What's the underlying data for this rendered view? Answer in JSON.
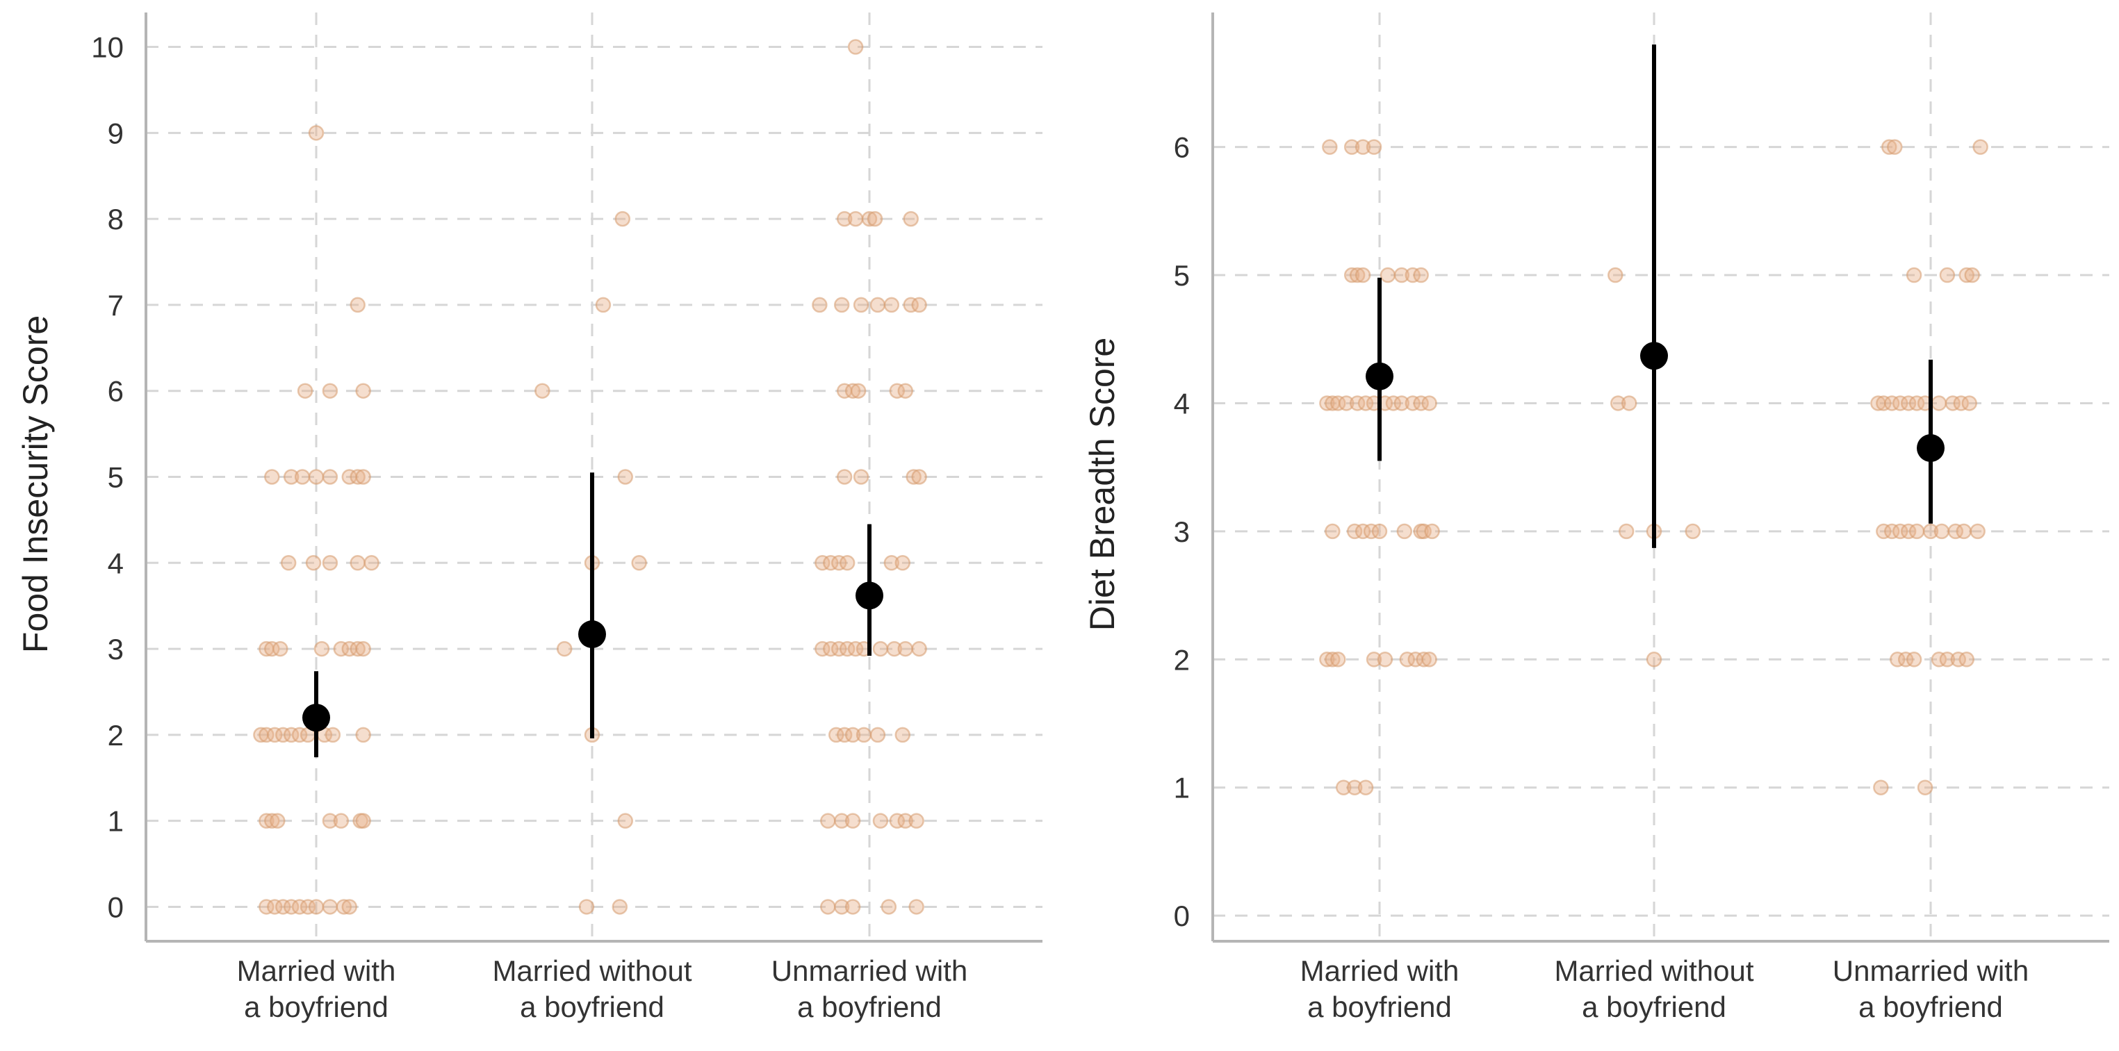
{
  "chart_data": [
    {
      "type": "scatter",
      "title": "",
      "xlabel": "",
      "ylabel": "Food Insecurity Score",
      "ylim": [
        -0.4,
        10.4
      ],
      "yticks": [
        0,
        1,
        2,
        3,
        4,
        5,
        6,
        7,
        8,
        9,
        10
      ],
      "categories": [
        [
          "Married with",
          "a boyfriend"
        ],
        [
          "Married without",
          "a boyfriend"
        ],
        [
          "Unmarried with",
          "a boyfriend"
        ]
      ],
      "means": [
        2.2,
        3.17,
        3.62
      ],
      "ci": [
        [
          1.74,
          2.74
        ],
        [
          1.96,
          5.05
        ],
        [
          2.92,
          4.45
        ]
      ],
      "points": [
        [
          [
            -0.18,
            0
          ],
          [
            -0.15,
            0
          ],
          [
            -0.12,
            0
          ],
          [
            -0.09,
            0
          ],
          [
            -0.06,
            0
          ],
          [
            -0.03,
            0
          ],
          [
            0.0,
            0
          ],
          [
            0.05,
            0
          ],
          [
            0.1,
            0
          ],
          [
            0.12,
            0
          ],
          [
            -0.18,
            1
          ],
          [
            -0.16,
            1
          ],
          [
            -0.14,
            1
          ],
          [
            0.05,
            1
          ],
          [
            0.09,
            1
          ],
          [
            0.16,
            1
          ],
          [
            0.17,
            1
          ],
          [
            -0.2,
            2
          ],
          [
            -0.18,
            2
          ],
          [
            -0.15,
            2
          ],
          [
            -0.12,
            2
          ],
          [
            -0.09,
            2
          ],
          [
            -0.06,
            2
          ],
          [
            -0.03,
            2
          ],
          [
            0.03,
            2
          ],
          [
            0.06,
            2
          ],
          [
            0.17,
            2
          ],
          [
            -0.18,
            3
          ],
          [
            -0.16,
            3
          ],
          [
            -0.13,
            3
          ],
          [
            0.02,
            3
          ],
          [
            0.09,
            3
          ],
          [
            0.12,
            3
          ],
          [
            0.15,
            3
          ],
          [
            0.17,
            3
          ],
          [
            -0.1,
            4
          ],
          [
            -0.01,
            4
          ],
          [
            0.05,
            4
          ],
          [
            0.15,
            4
          ],
          [
            0.2,
            4
          ],
          [
            -0.16,
            5
          ],
          [
            -0.09,
            5
          ],
          [
            -0.05,
            5
          ],
          [
            0.0,
            5
          ],
          [
            0.05,
            5
          ],
          [
            0.12,
            5
          ],
          [
            0.15,
            5
          ],
          [
            0.17,
            5
          ],
          [
            -0.04,
            6
          ],
          [
            0.05,
            6
          ],
          [
            0.17,
            6
          ],
          [
            0.15,
            7
          ],
          [
            0.0,
            9
          ]
        ],
        [
          [
            -0.02,
            0
          ],
          [
            0.1,
            0
          ],
          [
            0.12,
            1
          ],
          [
            0.0,
            2
          ],
          [
            -0.1,
            3
          ],
          [
            0.0,
            4
          ],
          [
            0.17,
            4
          ],
          [
            0.12,
            5
          ],
          [
            -0.18,
            6
          ],
          [
            0.04,
            7
          ],
          [
            0.11,
            8
          ]
        ],
        [
          [
            -0.15,
            0
          ],
          [
            -0.1,
            0
          ],
          [
            -0.06,
            0
          ],
          [
            0.07,
            0
          ],
          [
            0.17,
            0
          ],
          [
            -0.15,
            1
          ],
          [
            -0.1,
            1
          ],
          [
            -0.06,
            1
          ],
          [
            0.04,
            1
          ],
          [
            0.1,
            1
          ],
          [
            0.13,
            1
          ],
          [
            0.17,
            1
          ],
          [
            -0.12,
            2
          ],
          [
            -0.09,
            2
          ],
          [
            -0.06,
            2
          ],
          [
            -0.02,
            2
          ],
          [
            0.03,
            2
          ],
          [
            0.12,
            2
          ],
          [
            -0.17,
            3
          ],
          [
            -0.14,
            3
          ],
          [
            -0.11,
            3
          ],
          [
            -0.08,
            3
          ],
          [
            -0.05,
            3
          ],
          [
            -0.02,
            3
          ],
          [
            0.04,
            3
          ],
          [
            0.09,
            3
          ],
          [
            0.13,
            3
          ],
          [
            0.18,
            3
          ],
          [
            -0.17,
            4
          ],
          [
            -0.14,
            4
          ],
          [
            -0.11,
            4
          ],
          [
            -0.08,
            4
          ],
          [
            0.08,
            4
          ],
          [
            0.12,
            4
          ],
          [
            -0.09,
            5
          ],
          [
            -0.03,
            5
          ],
          [
            0.16,
            5
          ],
          [
            0.18,
            5
          ],
          [
            -0.09,
            6
          ],
          [
            -0.06,
            6
          ],
          [
            -0.04,
            6
          ],
          [
            0.1,
            6
          ],
          [
            0.13,
            6
          ],
          [
            -0.18,
            7
          ],
          [
            -0.1,
            7
          ],
          [
            -0.03,
            7
          ],
          [
            0.03,
            7
          ],
          [
            0.08,
            7
          ],
          [
            0.15,
            7
          ],
          [
            0.18,
            7
          ],
          [
            -0.09,
            8
          ],
          [
            -0.05,
            8
          ],
          [
            0.0,
            8
          ],
          [
            0.02,
            8
          ],
          [
            0.15,
            8
          ],
          [
            -0.05,
            10
          ]
        ]
      ]
    },
    {
      "type": "scatter",
      "title": "",
      "xlabel": "",
      "ylabel": "Diet Breadth Score",
      "ylim": [
        -0.2,
        7.05
      ],
      "yticks": [
        0,
        1,
        2,
        3,
        4,
        5,
        6
      ],
      "categories": [
        [
          "Married with",
          "a boyfriend"
        ],
        [
          "Married without",
          "a boyfriend"
        ],
        [
          "Unmarried with",
          "a boyfriend"
        ]
      ],
      "means": [
        4.21,
        4.37,
        3.65
      ],
      "ci": [
        [
          3.55,
          4.98
        ],
        [
          2.87,
          6.8
        ],
        [
          3.06,
          4.34
        ]
      ],
      "points": [
        [
          [
            -0.13,
            1
          ],
          [
            -0.09,
            1
          ],
          [
            -0.05,
            1
          ],
          [
            -0.19,
            2
          ],
          [
            -0.17,
            2
          ],
          [
            -0.15,
            2
          ],
          [
            -0.02,
            2
          ],
          [
            0.02,
            2
          ],
          [
            0.1,
            2
          ],
          [
            0.13,
            2
          ],
          [
            0.16,
            2
          ],
          [
            0.18,
            2
          ],
          [
            -0.17,
            3
          ],
          [
            -0.09,
            3
          ],
          [
            -0.06,
            3
          ],
          [
            -0.03,
            3
          ],
          [
            0.0,
            3
          ],
          [
            0.09,
            3
          ],
          [
            0.15,
            3
          ],
          [
            0.16,
            3
          ],
          [
            0.19,
            3
          ],
          [
            -0.19,
            4
          ],
          [
            -0.17,
            4
          ],
          [
            -0.15,
            4
          ],
          [
            -0.12,
            4
          ],
          [
            -0.08,
            4
          ],
          [
            -0.05,
            4
          ],
          [
            -0.02,
            4
          ],
          [
            0.02,
            4
          ],
          [
            0.05,
            4
          ],
          [
            0.08,
            4
          ],
          [
            0.12,
            4
          ],
          [
            0.15,
            4
          ],
          [
            0.18,
            4
          ],
          [
            -0.1,
            5
          ],
          [
            -0.08,
            5
          ],
          [
            -0.06,
            5
          ],
          [
            0.03,
            5
          ],
          [
            0.08,
            5
          ],
          [
            0.12,
            5
          ],
          [
            0.15,
            5
          ],
          [
            -0.18,
            6
          ],
          [
            -0.1,
            6
          ],
          [
            -0.06,
            6
          ],
          [
            -0.02,
            6
          ]
        ],
        [
          [
            0.0,
            2
          ],
          [
            -0.1,
            3
          ],
          [
            0.0,
            3
          ],
          [
            0.14,
            3
          ],
          [
            -0.13,
            4
          ],
          [
            -0.09,
            4
          ],
          [
            -0.14,
            5
          ]
        ],
        [
          [
            -0.18,
            1
          ],
          [
            -0.02,
            1
          ],
          [
            -0.12,
            2
          ],
          [
            -0.09,
            2
          ],
          [
            -0.06,
            2
          ],
          [
            0.03,
            2
          ],
          [
            0.06,
            2
          ],
          [
            0.1,
            2
          ],
          [
            0.13,
            2
          ],
          [
            -0.17,
            3
          ],
          [
            -0.14,
            3
          ],
          [
            -0.11,
            3
          ],
          [
            -0.08,
            3
          ],
          [
            -0.05,
            3
          ],
          [
            0.0,
            3
          ],
          [
            0.04,
            3
          ],
          [
            0.09,
            3
          ],
          [
            0.12,
            3
          ],
          [
            0.17,
            3
          ],
          [
            -0.19,
            4
          ],
          [
            -0.17,
            4
          ],
          [
            -0.14,
            4
          ],
          [
            -0.11,
            4
          ],
          [
            -0.08,
            4
          ],
          [
            -0.05,
            4
          ],
          [
            -0.02,
            4
          ],
          [
            0.03,
            4
          ],
          [
            0.08,
            4
          ],
          [
            0.11,
            4
          ],
          [
            0.14,
            4
          ],
          [
            -0.06,
            5
          ],
          [
            0.06,
            5
          ],
          [
            0.13,
            5
          ],
          [
            0.15,
            5
          ],
          [
            -0.15,
            6
          ],
          [
            -0.13,
            6
          ],
          [
            0.18,
            6
          ]
        ]
      ]
    }
  ]
}
